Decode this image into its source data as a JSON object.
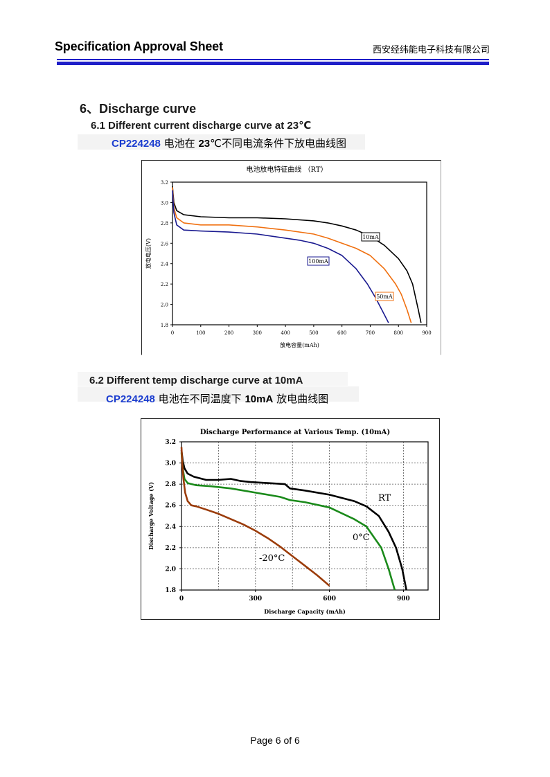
{
  "header": {
    "title": "Specification Approval Sheet",
    "company": "西安经纬能电子科技有限公司"
  },
  "section": {
    "title": "6、Discharge curve",
    "sub1": {
      "title": "6.1 Different current discharge curve at 23℃",
      "caption_model": "CP224248",
      "caption_a": " 电池在 ",
      "caption_temp": "23",
      "caption_b": "℃不同电流条件下放电曲线图"
    },
    "sub2": {
      "title": "6.2 Different temp discharge curve at 10mA",
      "caption_model": "CP224248",
      "caption_a": " 电池在不同温度下 ",
      "caption_current": "10mA",
      "caption_b": " 放电曲线图"
    }
  },
  "chart_data": [
    {
      "type": "line",
      "title": "电池放电特征曲线 （RT）",
      "xlabel": "放电容量(mAh)",
      "ylabel": "放电电压(V)",
      "xlim": [
        0,
        900
      ],
      "ylim": [
        1.8,
        3.2
      ],
      "x_ticks": [
        "0",
        "100",
        "200",
        "300",
        "400",
        "500",
        "600",
        "700",
        "800",
        "900"
      ],
      "y_ticks": [
        "1.8",
        "2.0",
        "2.2",
        "2.4",
        "2.6",
        "2.8",
        "3.0",
        "3.2"
      ],
      "grid": false,
      "series": [
        {
          "name": "10mA",
          "color": "#000000",
          "x": [
            0,
            5,
            15,
            40,
            100,
            200,
            300,
            400,
            500,
            550,
            600,
            650,
            700,
            750,
            800,
            830,
            850,
            870,
            880
          ],
          "y": [
            3.16,
            3.0,
            2.92,
            2.88,
            2.86,
            2.85,
            2.85,
            2.84,
            2.82,
            2.8,
            2.77,
            2.73,
            2.67,
            2.58,
            2.45,
            2.33,
            2.2,
            1.95,
            1.82
          ]
        },
        {
          "name": "50mA",
          "color": "#f07010",
          "x": [
            0,
            5,
            15,
            40,
            100,
            200,
            300,
            400,
            500,
            550,
            600,
            650,
            700,
            750,
            790,
            810,
            830,
            845
          ],
          "y": [
            3.15,
            2.95,
            2.85,
            2.8,
            2.78,
            2.78,
            2.76,
            2.73,
            2.69,
            2.65,
            2.6,
            2.55,
            2.48,
            2.35,
            2.2,
            2.1,
            1.95,
            1.82
          ]
        },
        {
          "name": "100mA",
          "color": "#1a1a90",
          "x": [
            0,
            5,
            15,
            40,
            100,
            200,
            300,
            400,
            450,
            500,
            550,
            600,
            650,
            690,
            720,
            750,
            765
          ],
          "y": [
            3.12,
            2.9,
            2.78,
            2.73,
            2.72,
            2.71,
            2.69,
            2.65,
            2.63,
            2.6,
            2.55,
            2.48,
            2.35,
            2.2,
            2.06,
            1.9,
            1.82
          ]
        }
      ],
      "labels": [
        {
          "text": "10mA",
          "series": "10mA"
        },
        {
          "text": "100mA",
          "series": "100mA"
        },
        {
          "text": "50mA",
          "series": "50mA"
        }
      ]
    },
    {
      "type": "line",
      "title": "Discharge Performance at Various Temp. (10mA)",
      "xlabel": "Discharge Capacity (mAh)",
      "ylabel": "Discharge Voltage (V)",
      "xlim": [
        0,
        1000
      ],
      "ylim": [
        1.8,
        3.2
      ],
      "x_ticks": [
        "0",
        "300",
        "600",
        "900"
      ],
      "y_ticks": [
        "1.8",
        "2.0",
        "2.2",
        "2.4",
        "2.6",
        "2.8",
        "3.0",
        "3.2"
      ],
      "grid": true,
      "series": [
        {
          "name": "RT",
          "color": "#000000",
          "x": [
            0,
            5,
            12,
            25,
            50,
            100,
            150,
            200,
            240,
            280,
            350,
            420,
            440,
            500,
            600,
            700,
            750,
            800,
            840,
            870,
            895,
            912
          ],
          "y": [
            3.12,
            3.02,
            2.95,
            2.9,
            2.87,
            2.84,
            2.84,
            2.85,
            2.83,
            2.82,
            2.81,
            2.8,
            2.76,
            2.74,
            2.7,
            2.64,
            2.59,
            2.5,
            2.35,
            2.2,
            2.0,
            1.8
          ]
        },
        {
          "name": "0°C",
          "color": "#1a8a1a",
          "x": [
            0,
            5,
            12,
            25,
            60,
            120,
            200,
            300,
            400,
            440,
            500,
            600,
            700,
            750,
            780,
            810,
            840,
            865
          ],
          "y": [
            3.1,
            2.95,
            2.85,
            2.81,
            2.79,
            2.78,
            2.76,
            2.72,
            2.68,
            2.65,
            2.63,
            2.58,
            2.47,
            2.4,
            2.3,
            2.2,
            2.0,
            1.8
          ]
        },
        {
          "name": "-20°C",
          "color": "#9b3c0a",
          "x": [
            0,
            3,
            8,
            15,
            25,
            40,
            60,
            100,
            150,
            200,
            250,
            300,
            350,
            400,
            450,
            500,
            550,
            600
          ],
          "y": [
            3.15,
            3.0,
            2.85,
            2.72,
            2.64,
            2.6,
            2.59,
            2.56,
            2.52,
            2.47,
            2.42,
            2.36,
            2.29,
            2.21,
            2.12,
            2.03,
            1.94,
            1.84
          ]
        }
      ],
      "labels": [
        {
          "text": "RT",
          "series": "RT"
        },
        {
          "text": "0°C",
          "series": "0°C"
        },
        {
          "text": "-20°C",
          "series": "-20°C"
        }
      ]
    }
  ],
  "footer": {
    "page": "Page 6 of 6"
  }
}
